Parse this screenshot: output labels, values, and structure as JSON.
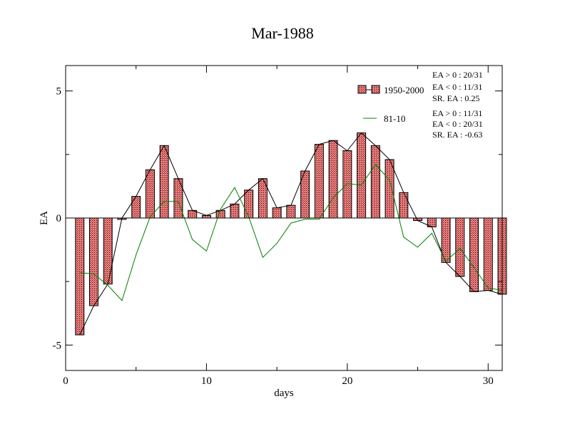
{
  "chart_data": {
    "type": "bar",
    "title": "Mar-1988",
    "xlabel": "days",
    "ylabel": "EA",
    "xlim": [
      0,
      31
    ],
    "ylim": [
      -6,
      6
    ],
    "x_ticks": [
      0,
      10,
      20,
      30
    ],
    "x_tick_labels": [
      "0",
      "10",
      "20",
      "30"
    ],
    "y_ticks": [
      5,
      0,
      -5
    ],
    "y_tick_labels": [
      "5",
      "0",
      "-5"
    ],
    "legend_placement": "top-right",
    "x": [
      1,
      2,
      3,
      4,
      5,
      6,
      7,
      8,
      9,
      10,
      11,
      12,
      13,
      14,
      15,
      16,
      17,
      18,
      19,
      20,
      21,
      22,
      23,
      24,
      25,
      26,
      27,
      28,
      29,
      30,
      31
    ],
    "series": [
      {
        "name": "1950-2000",
        "kind": "bar-with-line",
        "color": "#e06c6c",
        "values": [
          -4.6,
          -3.45,
          -2.6,
          0.0,
          0.85,
          1.9,
          2.85,
          1.55,
          0.3,
          0.1,
          0.3,
          0.55,
          1.1,
          1.55,
          0.4,
          0.5,
          1.85,
          2.9,
          3.05,
          2.65,
          3.35,
          2.85,
          2.3,
          1.0,
          -0.1,
          -0.35,
          -1.75,
          -2.3,
          -2.9,
          -2.85,
          -3.0
        ]
      },
      {
        "name": "81-10",
        "kind": "line",
        "color": "#008000",
        "values": [
          -2.15,
          -2.2,
          -2.65,
          -3.25,
          -1.45,
          0.05,
          0.65,
          0.65,
          -0.85,
          -1.3,
          0.35,
          1.2,
          0.05,
          -1.55,
          -1.0,
          -0.2,
          -0.05,
          -0.05,
          0.8,
          1.35,
          1.3,
          2.1,
          1.5,
          -0.75,
          -1.15,
          -0.6,
          -1.7,
          -1.2,
          -1.95,
          -2.75,
          -2.85
        ]
      }
    ],
    "stats": [
      [
        "EA > 0 : 20/31",
        "EA < 0 : 11/31",
        "SR. EA :  0.25"
      ],
      [
        "EA > 0 : 11/31",
        "EA < 0 : 20/31",
        "SR. EA : -0.63"
      ]
    ]
  }
}
